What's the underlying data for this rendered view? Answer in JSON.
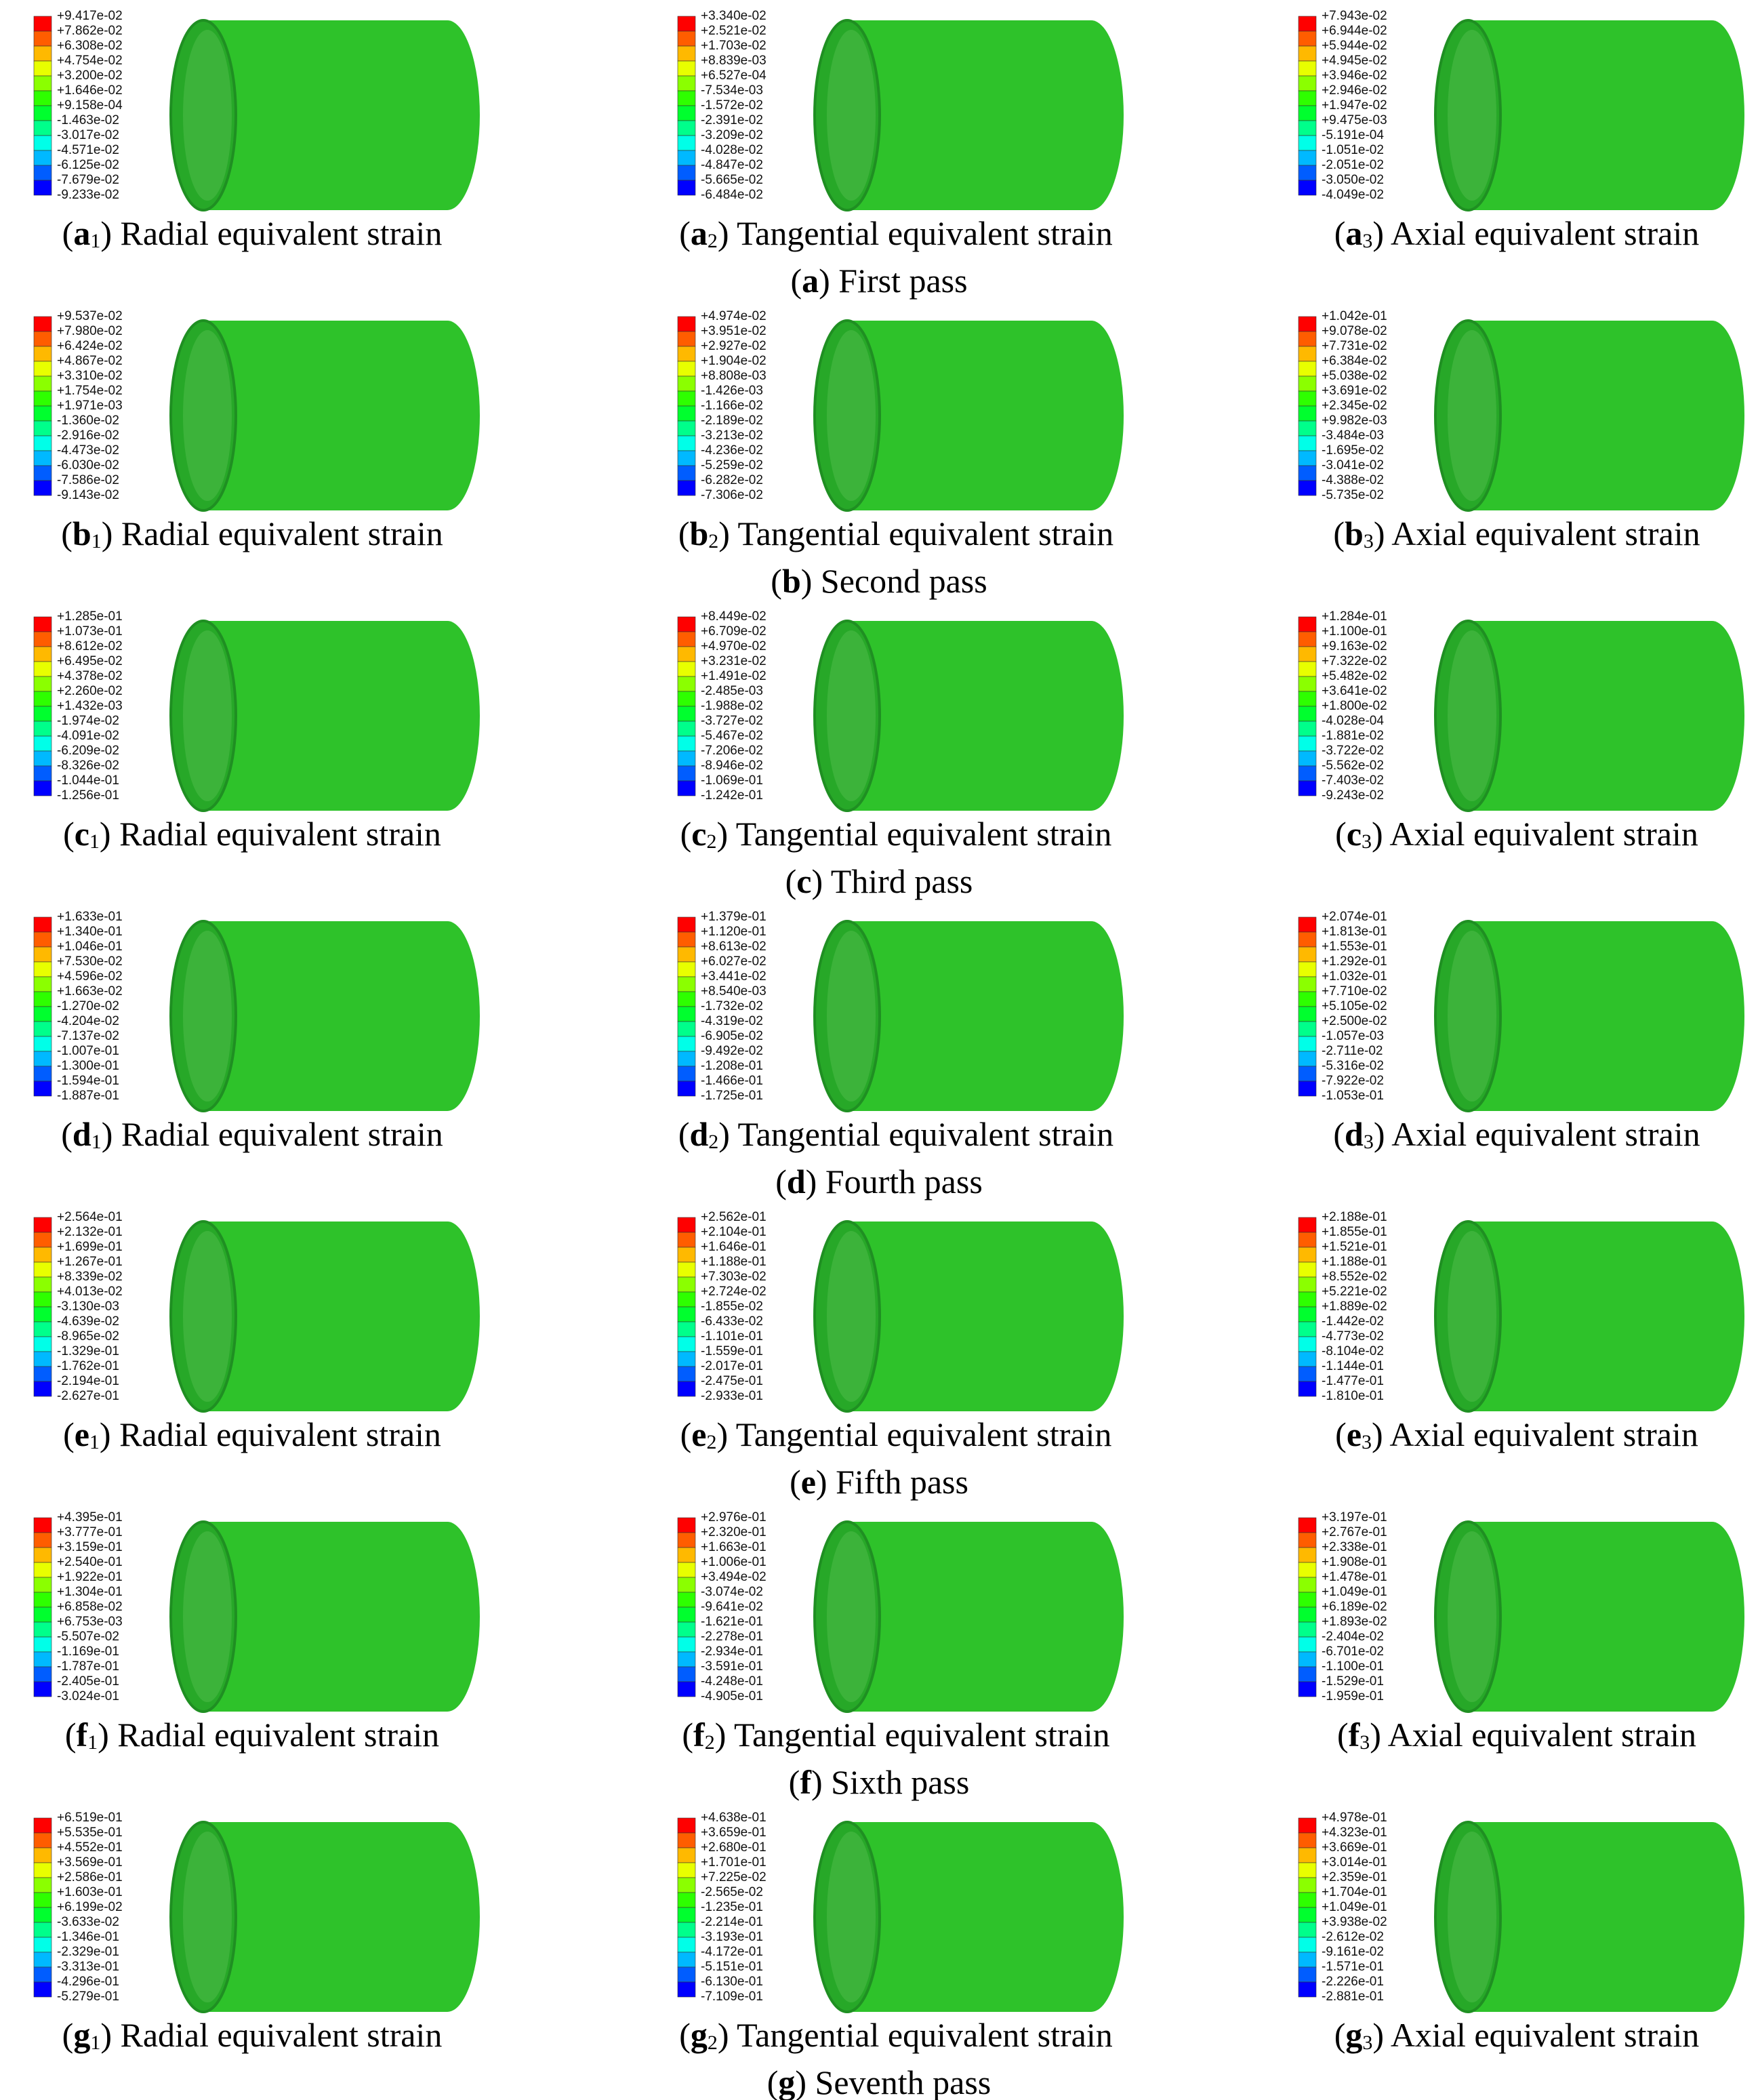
{
  "rows": [
    {
      "caption": [
        "(",
        "a",
        ") First pass"
      ],
      "panels": [
        {
          "caption": [
            "(",
            "a",
            "1",
            ") Radial equivalent strain"
          ],
          "legend": [
            "+9.417e-02",
            "+7.862e-02",
            "+6.308e-02",
            "+4.754e-02",
            "+3.200e-02",
            "+1.646e-02",
            "+9.158e-04",
            "-1.463e-02",
            "-3.017e-02",
            "-4.571e-02",
            "-6.125e-02",
            "-7.679e-02",
            "-9.233e-02"
          ]
        },
        {
          "caption": [
            "(",
            "a",
            "2",
            ") Tangential equivalent strain"
          ],
          "legend": [
            "+3.340e-02",
            "+2.521e-02",
            "+1.703e-02",
            "+8.839e-03",
            "+6.527e-04",
            "-7.534e-03",
            "-1.572e-02",
            "-2.391e-02",
            "-3.209e-02",
            "-4.028e-02",
            "-4.847e-02",
            "-5.665e-02",
            "-6.484e-02"
          ]
        },
        {
          "caption": [
            "(",
            "a",
            "3",
            ") Axial equivalent strain"
          ],
          "legend": [
            "+7.943e-02",
            "+6.944e-02",
            "+5.944e-02",
            "+4.945e-02",
            "+3.946e-02",
            "+2.946e-02",
            "+1.947e-02",
            "+9.475e-03",
            "-5.191e-04",
            "-1.051e-02",
            "-2.051e-02",
            "-3.050e-02",
            "-4.049e-02"
          ]
        }
      ]
    },
    {
      "caption": [
        "(",
        "b",
        ") Second pass"
      ],
      "panels": [
        {
          "caption": [
            "(",
            "b",
            "1",
            ") Radial equivalent strain"
          ],
          "legend": [
            "+9.537e-02",
            "+7.980e-02",
            "+6.424e-02",
            "+4.867e-02",
            "+3.310e-02",
            "+1.754e-02",
            "+1.971e-03",
            "-1.360e-02",
            "-2.916e-02",
            "-4.473e-02",
            "-6.030e-02",
            "-7.586e-02",
            "-9.143e-02"
          ]
        },
        {
          "caption": [
            "(",
            "b",
            "2",
            ") Tangential equivalent strain"
          ],
          "legend": [
            "+4.974e-02",
            "+3.951e-02",
            "+2.927e-02",
            "+1.904e-02",
            "+8.808e-03",
            "-1.426e-03",
            "-1.166e-02",
            "-2.189e-02",
            "-3.213e-02",
            "-4.236e-02",
            "-5.259e-02",
            "-6.282e-02",
            "-7.306e-02"
          ]
        },
        {
          "caption": [
            "(",
            "b",
            "3",
            ") Axial equivalent strain"
          ],
          "legend": [
            "+1.042e-01",
            "+9.078e-02",
            "+7.731e-02",
            "+6.384e-02",
            "+5.038e-02",
            "+3.691e-02",
            "+2.345e-02",
            "+9.982e-03",
            "-3.484e-03",
            "-1.695e-02",
            "-3.041e-02",
            "-4.388e-02",
            "-5.735e-02"
          ]
        }
      ]
    },
    {
      "caption": [
        "(",
        "c",
        ") Third pass"
      ],
      "panels": [
        {
          "caption": [
            "(",
            "c",
            "1",
            ") Radial equivalent strain"
          ],
          "legend": [
            "+1.285e-01",
            "+1.073e-01",
            "+8.612e-02",
            "+6.495e-02",
            "+4.378e-02",
            "+2.260e-02",
            "+1.432e-03",
            "-1.974e-02",
            "-4.091e-02",
            "-6.209e-02",
            "-8.326e-02",
            "-1.044e-01",
            "-1.256e-01"
          ]
        },
        {
          "caption": [
            "(",
            "c",
            "2",
            ") Tangential equivalent strain"
          ],
          "legend": [
            "+8.449e-02",
            "+6.709e-02",
            "+4.970e-02",
            "+3.231e-02",
            "+1.491e-02",
            "-2.485e-03",
            "-1.988e-02",
            "-3.727e-02",
            "-5.467e-02",
            "-7.206e-02",
            "-8.946e-02",
            "-1.069e-01",
            "-1.242e-01"
          ]
        },
        {
          "caption": [
            "(",
            "c",
            "3",
            ") Axial equivalent strain"
          ],
          "legend": [
            "+1.284e-01",
            "+1.100e-01",
            "+9.163e-02",
            "+7.322e-02",
            "+5.482e-02",
            "+3.641e-02",
            "+1.800e-02",
            "-4.028e-04",
            "-1.881e-02",
            "-3.722e-02",
            "-5.562e-02",
            "-7.403e-02",
            "-9.243e-02"
          ]
        }
      ]
    },
    {
      "caption": [
        "(",
        "d",
        ") Fourth pass"
      ],
      "panels": [
        {
          "caption": [
            "(",
            "d",
            "1",
            ") Radial equivalent strain"
          ],
          "legend": [
            "+1.633e-01",
            "+1.340e-01",
            "+1.046e-01",
            "+7.530e-02",
            "+4.596e-02",
            "+1.663e-02",
            "-1.270e-02",
            "-4.204e-02",
            "-7.137e-02",
            "-1.007e-01",
            "-1.300e-01",
            "-1.594e-01",
            "-1.887e-01"
          ]
        },
        {
          "caption": [
            "(",
            "d",
            "2",
            ") Tangential equivalent strain"
          ],
          "legend": [
            "+1.379e-01",
            "+1.120e-01",
            "+8.613e-02",
            "+6.027e-02",
            "+3.441e-02",
            "+8.540e-03",
            "-1.732e-02",
            "-4.319e-02",
            "-6.905e-02",
            "-9.492e-02",
            "-1.208e-01",
            "-1.466e-01",
            "-1.725e-01"
          ]
        },
        {
          "caption": [
            "(",
            "d",
            "3",
            ") Axial equivalent strain"
          ],
          "legend": [
            "+2.074e-01",
            "+1.813e-01",
            "+1.553e-01",
            "+1.292e-01",
            "+1.032e-01",
            "+7.710e-02",
            "+5.105e-02",
            "+2.500e-02",
            "-1.057e-03",
            "-2.711e-02",
            "-5.316e-02",
            "-7.922e-02",
            "-1.053e-01"
          ]
        }
      ]
    },
    {
      "caption": [
        "(",
        "e",
        ") Fifth pass"
      ],
      "panels": [
        {
          "caption": [
            "(",
            "e",
            "1",
            ") Radial equivalent strain"
          ],
          "legend": [
            "+2.564e-01",
            "+2.132e-01",
            "+1.699e-01",
            "+1.267e-01",
            "+8.339e-02",
            "+4.013e-02",
            "-3.130e-03",
            "-4.639e-02",
            "-8.965e-02",
            "-1.329e-01",
            "-1.762e-01",
            "-2.194e-01",
            "-2.627e-01"
          ]
        },
        {
          "caption": [
            "(",
            "e",
            "2",
            ") Tangential equivalent strain"
          ],
          "legend": [
            "+2.562e-01",
            "+2.104e-01",
            "+1.646e-01",
            "+1.188e-01",
            "+7.303e-02",
            "+2.724e-02",
            "-1.855e-02",
            "-6.433e-02",
            "-1.101e-01",
            "-1.559e-01",
            "-2.017e-01",
            "-2.475e-01",
            "-2.933e-01"
          ]
        },
        {
          "caption": [
            "(",
            "e",
            "3",
            ") Axial equivalent strain"
          ],
          "legend": [
            "+2.188e-01",
            "+1.855e-01",
            "+1.521e-01",
            "+1.188e-01",
            "+8.552e-02",
            "+5.221e-02",
            "+1.889e-02",
            "-1.442e-02",
            "-4.773e-02",
            "-8.104e-02",
            "-1.144e-01",
            "-1.477e-01",
            "-1.810e-01"
          ]
        }
      ]
    },
    {
      "caption": [
        "(",
        "f",
        ") Sixth pass"
      ],
      "panels": [
        {
          "caption": [
            "(",
            "f",
            "1",
            ") Radial equivalent strain"
          ],
          "legend": [
            "+4.395e-01",
            "+3.777e-01",
            "+3.159e-01",
            "+2.540e-01",
            "+1.922e-01",
            "+1.304e-01",
            "+6.858e-02",
            "+6.753e-03",
            "-5.507e-02",
            "-1.169e-01",
            "-1.787e-01",
            "-2.405e-01",
            "-3.024e-01"
          ]
        },
        {
          "caption": [
            "(",
            "f",
            "2",
            ") Tangential equivalent strain"
          ],
          "legend": [
            "+2.976e-01",
            "+2.320e-01",
            "+1.663e-01",
            "+1.006e-01",
            "+3.494e-02",
            "-3.074e-02",
            "-9.641e-02",
            "-1.621e-01",
            "-2.278e-01",
            "-2.934e-01",
            "-3.591e-01",
            "-4.248e-01",
            "-4.905e-01"
          ]
        },
        {
          "caption": [
            "(",
            "f",
            "3",
            ") Axial equivalent strain"
          ],
          "legend": [
            "+3.197e-01",
            "+2.767e-01",
            "+2.338e-01",
            "+1.908e-01",
            "+1.478e-01",
            "+1.049e-01",
            "+6.189e-02",
            "+1.893e-02",
            "-2.404e-02",
            "-6.701e-02",
            "-1.100e-01",
            "-1.529e-01",
            "-1.959e-01"
          ]
        }
      ]
    },
    {
      "caption": [
        "(",
        "g",
        ") Seventh pass"
      ],
      "panels": [
        {
          "caption": [
            "(",
            "g",
            "1",
            ") Radial equivalent strain"
          ],
          "legend": [
            "+6.519e-01",
            "+5.535e-01",
            "+4.552e-01",
            "+3.569e-01",
            "+2.586e-01",
            "+1.603e-01",
            "+6.199e-02",
            "-3.633e-02",
            "-1.346e-01",
            "-2.329e-01",
            "-3.313e-01",
            "-4.296e-01",
            "-5.279e-01"
          ]
        },
        {
          "caption": [
            "(",
            "g",
            "2",
            ") Tangential equivalent strain"
          ],
          "legend": [
            "+4.638e-01",
            "+3.659e-01",
            "+2.680e-01",
            "+1.701e-01",
            "+7.225e-02",
            "-2.565e-02",
            "-1.235e-01",
            "-2.214e-01",
            "-3.193e-01",
            "-4.172e-01",
            "-5.151e-01",
            "-6.130e-01",
            "-7.109e-01"
          ]
        },
        {
          "caption": [
            "(",
            "g",
            "3",
            ") Axial equivalent strain"
          ],
          "legend": [
            "+4.978e-01",
            "+4.323e-01",
            "+3.669e-01",
            "+3.014e-01",
            "+2.359e-01",
            "+1.704e-01",
            "+1.049e-01",
            "+3.938e-02",
            "-2.612e-02",
            "-9.161e-02",
            "-1.571e-01",
            "-2.226e-01",
            "-2.881e-01"
          ]
        }
      ]
    }
  ]
}
